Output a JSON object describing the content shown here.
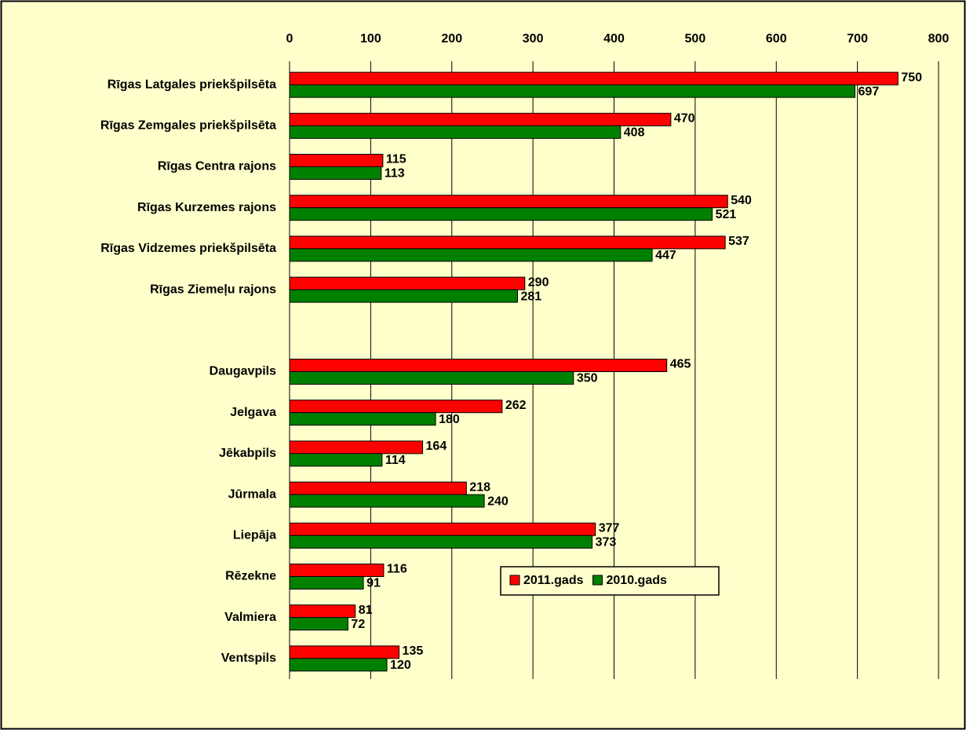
{
  "chart_data": {
    "type": "bar",
    "orientation": "horizontal",
    "categories": [
      "Rīgas Latgales priekšpilsēta",
      "Rīgas Zemgales priekšpilsēta",
      "Rīgas Centra rajons",
      "Rīgas Kurzemes rajons",
      "Rīgas Vidzemes priekšpilsēta",
      "Rīgas Ziemeļu rajons",
      null,
      "Daugavpils",
      "Jelgava",
      "Jēkabpils",
      "Jūrmala",
      "Liepāja",
      "Rēzekne",
      "Valmiera",
      "Ventspils"
    ],
    "series": [
      {
        "name": "2011.gads",
        "color": "#ff0000",
        "values": [
          750,
          470,
          115,
          540,
          537,
          290,
          null,
          465,
          262,
          164,
          218,
          377,
          116,
          81,
          135
        ]
      },
      {
        "name": "2010.gads",
        "color": "#008000",
        "values": [
          697,
          408,
          113,
          521,
          447,
          281,
          null,
          350,
          180,
          114,
          240,
          373,
          91,
          72,
          120
        ]
      }
    ],
    "xlim": [
      0,
      800
    ],
    "xticks": [
      0,
      100,
      200,
      300,
      400,
      500,
      600,
      700,
      800
    ],
    "grid": true,
    "legend": "bottom",
    "background": "#ffffcc"
  }
}
